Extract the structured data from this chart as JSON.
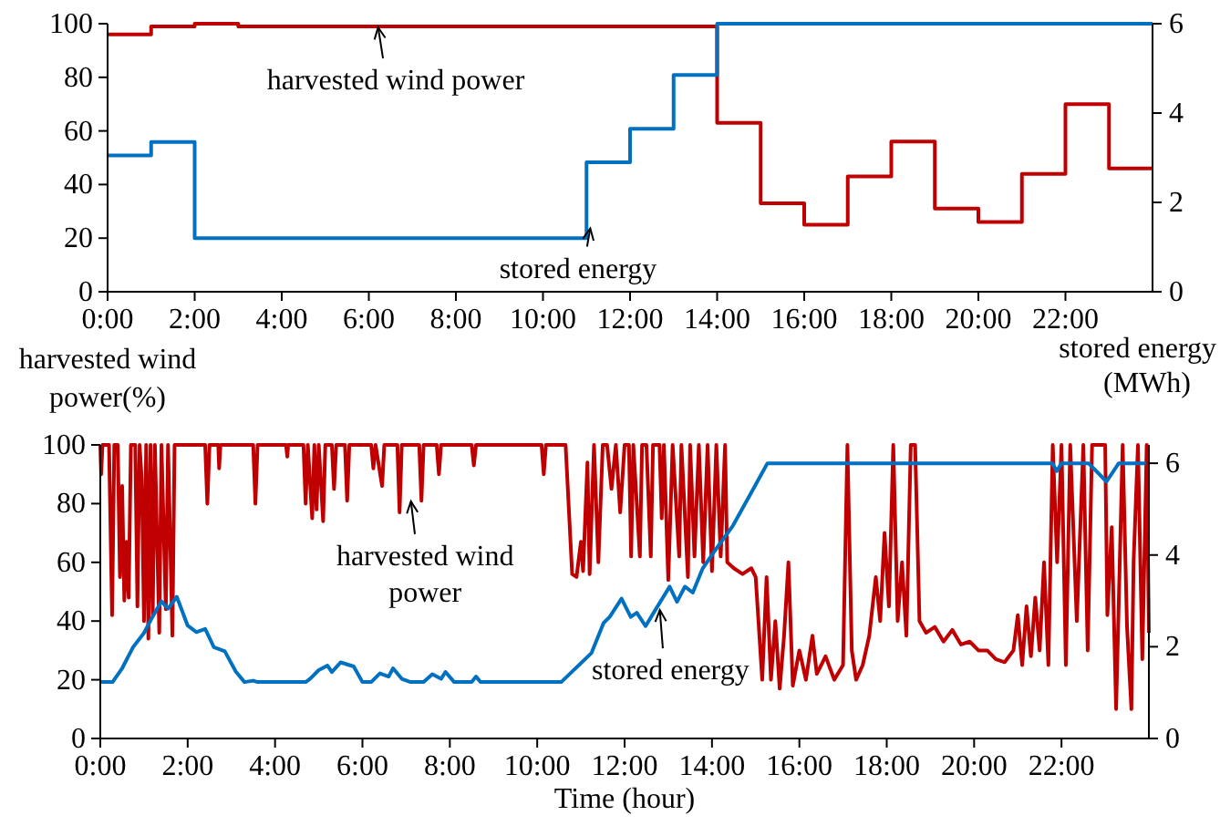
{
  "chart_data": [
    {
      "type": "step",
      "ylabel": "harvested wind power(%)",
      "xlim": [
        0,
        24
      ],
      "xticks": [
        {
          "value": 0,
          "label": "0:00"
        },
        {
          "value": 2,
          "label": "2:00"
        },
        {
          "value": 4,
          "label": "4:00"
        },
        {
          "value": 6,
          "label": "6:00"
        },
        {
          "value": 8,
          "label": "8:00"
        },
        {
          "value": 10,
          "label": "10:00"
        },
        {
          "value": 12,
          "label": "12:00"
        },
        {
          "value": 14,
          "label": "14:00"
        },
        {
          "value": 16,
          "label": "16:00"
        },
        {
          "value": 18,
          "label": "18:00"
        },
        {
          "value": 20,
          "label": "20:00"
        },
        {
          "value": 22,
          "label": "22:00"
        }
      ],
      "ylim": [
        0,
        100
      ],
      "yticks": [
        0,
        20,
        40,
        60,
        80,
        100
      ],
      "y2lim": [
        0,
        6
      ],
      "y2ticks": [
        0,
        2,
        4,
        6
      ],
      "grid": false,
      "line_style": "solid",
      "marker": "none",
      "x": [
        0,
        1,
        2,
        3,
        4,
        5,
        6,
        7,
        8,
        9,
        10,
        11,
        12,
        13,
        14,
        15,
        16,
        17,
        18,
        19,
        20,
        21,
        22,
        23,
        24
      ],
      "series": [
        {
          "color": "#c00000",
          "values": [
            96,
            99,
            100,
            99,
            99,
            99,
            99,
            99,
            99,
            99,
            99,
            99,
            99,
            99,
            63,
            33,
            25,
            43,
            56,
            31,
            26,
            44,
            70,
            46,
            46
          ]
        },
        {
          "color": "#0070c0",
          "axis": "y2",
          "values": [
            3.05,
            3.35,
            1.2,
            1.2,
            1.2,
            1.2,
            1.2,
            1.2,
            1.2,
            1.2,
            1.2,
            2.9,
            3.65,
            4.85,
            6,
            6,
            6,
            6,
            6,
            6,
            6,
            6,
            6,
            6,
            6
          ]
        }
      ],
      "annotations": [
        {
          "text": "harvested wind power",
          "x": 6.2,
          "y": 100
        },
        {
          "text": "stored energy",
          "x": 11.1,
          "y": 25
        }
      ]
    },
    {
      "type": "line",
      "xlabel": "Time (hour)",
      "y2label": "stored energy (MWh)",
      "xlim": [
        0,
        24
      ],
      "xticks": [
        {
          "value": 0,
          "label": "0:00"
        },
        {
          "value": 2,
          "label": "2:00"
        },
        {
          "value": 4,
          "label": "4:00"
        },
        {
          "value": 6,
          "label": "6:00"
        },
        {
          "value": 8,
          "label": "8:00"
        },
        {
          "value": 10,
          "label": "10:00"
        },
        {
          "value": 12,
          "label": "12:00"
        },
        {
          "value": 14,
          "label": "14:00"
        },
        {
          "value": 16,
          "label": "16:00"
        },
        {
          "value": 18,
          "label": "18:00"
        },
        {
          "value": 20,
          "label": "20:00"
        },
        {
          "value": 22,
          "label": "22:00"
        }
      ],
      "ylim": [
        0,
        100
      ],
      "yticks": [
        0,
        20,
        40,
        60,
        80,
        100
      ],
      "y2lim": [
        0,
        6.4
      ],
      "y2ticks": [
        0,
        2,
        4,
        6
      ],
      "grid": false,
      "line_style": "solid",
      "marker": "none",
      "series": [
        {
          "color": "#c00000",
          "x": [
            0,
            0.02,
            0.05,
            0.2,
            0.27,
            0.32,
            0.4,
            0.45,
            0.5,
            0.55,
            0.6,
            0.65,
            0.7,
            0.8,
            0.85,
            0.9,
            0.95,
            1,
            1.05,
            1.1,
            1.15,
            1.2,
            1.25,
            1.35,
            1.4,
            1.5,
            1.55,
            1.65,
            1.7,
            2.4,
            2.45,
            2.5,
            2.7,
            2.72,
            2.75,
            3.5,
            3.55,
            3.6,
            4.25,
            4.28,
            4.3,
            4.65,
            4.7,
            4.75,
            4.85,
            4.9,
            4.95,
            5,
            5.1,
            5.15,
            5.3,
            5.35,
            5.4,
            5.6,
            5.65,
            5.7,
            6.2,
            6.25,
            6.3,
            6.45,
            6.5,
            6.8,
            6.85,
            6.9,
            7.3,
            7.35,
            7.4,
            7.7,
            7.75,
            7.8,
            8.5,
            8.55,
            8.6,
            10.1,
            10.15,
            10.2,
            10.65,
            10.8,
            10.9,
            11,
            11.05,
            11.15,
            11.2,
            11.3,
            11.4,
            11.5,
            11.6,
            11.7,
            11.8,
            11.9,
            12,
            12.1,
            12.15,
            12.2,
            12.35,
            12.4,
            12.5,
            12.6,
            12.65,
            12.8,
            12.85,
            12.9,
            13,
            13.1,
            13.25,
            13.3,
            13.45,
            13.5,
            13.6,
            13.7,
            13.8,
            13.9,
            14,
            14.1,
            14.2,
            14.3,
            14.35,
            14.5,
            14.7,
            14.9,
            15,
            15.15,
            15.25,
            15.35,
            15.45,
            15.55,
            15.65,
            15.75,
            15.85,
            16,
            16.15,
            16.3,
            16.4,
            16.6,
            16.8,
            17,
            17.1,
            17.2,
            17.3,
            17.45,
            17.6,
            17.75,
            17.85,
            17.95,
            18.05,
            18.15,
            18.25,
            18.35,
            18.45,
            18.55,
            18.65,
            18.75,
            18.9,
            19.1,
            19.3,
            19.5,
            19.7,
            19.9,
            20.1,
            20.3,
            20.5,
            20.7,
            20.9,
            21,
            21.1,
            21.2,
            21.3,
            21.4,
            21.5,
            21.6,
            21.7,
            21.8,
            21.9,
            22,
            22.1,
            22.2,
            22.35,
            22.5,
            22.6,
            22.7,
            23,
            23.05,
            23.15,
            23.25,
            23.3,
            23.4,
            23.5,
            23.6,
            23.65,
            23.75,
            23.85,
            23.95,
            24
          ],
          "values": [
            100,
            90,
            100,
            100,
            42,
            100,
            100,
            55,
            86,
            47,
            67,
            48,
            100,
            100,
            45,
            100,
            88,
            40,
            100,
            34,
            100,
            42,
            100,
            36,
            100,
            44,
            100,
            35,
            100,
            100,
            80,
            100,
            100,
            92,
            100,
            100,
            80,
            100,
            100,
            96,
            100,
            100,
            80,
            100,
            75,
            100,
            78,
            100,
            74,
            100,
            100,
            85,
            100,
            100,
            81,
            100,
            100,
            92,
            100,
            86,
            100,
            100,
            77,
            100,
            100,
            81,
            100,
            100,
            90,
            100,
            100,
            93,
            100,
            100,
            90,
            100,
            100,
            56,
            55,
            67,
            57,
            94,
            56,
            100,
            60,
            100,
            100,
            85,
            100,
            77,
            100,
            100,
            62,
            100,
            62,
            100,
            100,
            62,
            100,
            100,
            75,
            100,
            54,
            100,
            62,
            100,
            55,
            100,
            62,
            100,
            60,
            100,
            57,
            100,
            62,
            100,
            60,
            58,
            56,
            58,
            55,
            20,
            55,
            20,
            40,
            17,
            35,
            60,
            18,
            30,
            20,
            35,
            22,
            28,
            20,
            25,
            100,
            30,
            20,
            25,
            35,
            55,
            40,
            70,
            45,
            100,
            40,
            60,
            35,
            100,
            100,
            40,
            36,
            38,
            33,
            37,
            32,
            33,
            30,
            30,
            27,
            26,
            30,
            42,
            25,
            45,
            28,
            48,
            30,
            60,
            25,
            100,
            60,
            100,
            25,
            100,
            40,
            100,
            30,
            100,
            100,
            42,
            72,
            10,
            40,
            100,
            38,
            10,
            60,
            100,
            27,
            100,
            36
          ]
        },
        {
          "color": "#0070c0",
          "axis": "y2",
          "x": [
            0,
            0.28,
            0.5,
            0.75,
            1,
            1.2,
            1.4,
            1.55,
            1.75,
            2,
            2.2,
            2.4,
            2.6,
            2.85,
            3.1,
            3.3,
            3.5,
            3.6,
            4.7,
            4.8,
            5,
            5.2,
            5.3,
            5.5,
            5.8,
            6,
            6.2,
            6.4,
            6.6,
            6.7,
            6.9,
            7.1,
            7.4,
            7.6,
            7.8,
            7.9,
            8.1,
            8.5,
            8.6,
            8.7,
            10.55,
            11.24,
            11.52,
            11.66,
            11.93,
            12.14,
            12.28,
            12.48,
            12.69,
            13.03,
            13.2,
            13.38,
            13.56,
            13.79,
            14.07,
            14.48,
            14.9,
            15.27,
            21.79,
            21.89,
            22,
            22.62,
            23.03,
            23.31,
            23.93
          ],
          "values": [
            1.23,
            1.23,
            1.53,
            1.99,
            2.3,
            2.66,
            2.99,
            2.83,
            3.09,
            2.46,
            2.32,
            2.39,
            1.99,
            1.9,
            1.46,
            1.23,
            1.26,
            1.23,
            1.23,
            1.3,
            1.49,
            1.59,
            1.45,
            1.66,
            1.57,
            1.23,
            1.23,
            1.42,
            1.35,
            1.53,
            1.3,
            1.23,
            1.23,
            1.4,
            1.3,
            1.45,
            1.23,
            1.23,
            1.35,
            1.23,
            1.23,
            1.86,
            2.52,
            2.65,
            3.05,
            2.65,
            2.74,
            2.45,
            2.78,
            3.31,
            2.98,
            3.31,
            3.18,
            3.71,
            4.1,
            4.64,
            5.36,
            6,
            6,
            5.83,
            6,
            6,
            5.6,
            6,
            6
          ]
        }
      ],
      "annotations": [
        {
          "text": "harvested wind power",
          "x": 7.1,
          "y": 82
        },
        {
          "text": "stored energy",
          "x": 12.8,
          "y": 45
        }
      ]
    }
  ]
}
